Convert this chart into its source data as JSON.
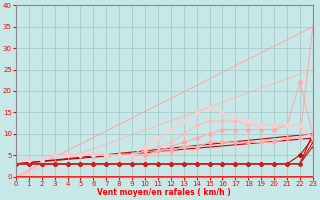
{
  "xlabel": "Vent moyen/en rafales ( km/h )",
  "bg_color": "#c8e8e8",
  "grid_color": "#a0c8c8",
  "x_min": 0,
  "x_max": 23,
  "y_min": 0,
  "y_max": 40,
  "yticks": [
    0,
    5,
    10,
    15,
    20,
    25,
    30,
    35,
    40
  ],
  "xticks": [
    0,
    1,
    2,
    3,
    4,
    5,
    6,
    7,
    8,
    9,
    10,
    11,
    12,
    13,
    14,
    15,
    16,
    17,
    18,
    19,
    20,
    21,
    22,
    23
  ],
  "lines": [
    {
      "x": [
        0,
        1,
        2,
        3,
        4,
        5,
        6,
        7,
        8,
        9,
        10,
        11,
        12,
        13,
        14,
        15,
        16,
        17,
        18,
        19,
        20,
        21,
        22,
        23
      ],
      "y": [
        3,
        3,
        3,
        3,
        3,
        3,
        3,
        3,
        3,
        3,
        3,
        3,
        3,
        3,
        3,
        3,
        3,
        3,
        3,
        3,
        3,
        3,
        3,
        10
      ],
      "color": "#cc0000",
      "lw": 0.8,
      "marker": "D",
      "ms": 2
    },
    {
      "x": [
        0,
        1,
        2,
        3,
        4,
        5,
        6,
        7,
        8,
        9,
        10,
        11,
        12,
        13,
        14,
        15,
        16,
        17,
        18,
        19,
        20,
        21,
        22,
        23
      ],
      "y": [
        3,
        3,
        3,
        3,
        3,
        3,
        3,
        3,
        3,
        3,
        3,
        3,
        3,
        3,
        3,
        3,
        3,
        3,
        3,
        3,
        3,
        3,
        5,
        9
      ],
      "color": "#cc0000",
      "lw": 0.8,
      "marker": "D",
      "ms": 2
    },
    {
      "x": [
        0,
        1,
        2,
        3,
        4,
        5,
        6,
        7,
        8,
        9,
        10,
        11,
        12,
        13,
        14,
        15,
        16,
        17,
        18,
        19,
        20,
        21,
        22,
        23
      ],
      "y": [
        3,
        3,
        3,
        3,
        3,
        3,
        3,
        3,
        3,
        3,
        3,
        3,
        3,
        3,
        3,
        3,
        3,
        3,
        3,
        3,
        3,
        3,
        3,
        8
      ],
      "color": "#cc2222",
      "lw": 0.8,
      "marker": "+",
      "ms": 3
    },
    {
      "x": [
        0,
        1,
        2,
        3,
        4,
        5,
        6,
        7,
        8,
        9,
        10,
        11,
        12,
        13,
        14,
        15,
        16,
        17,
        18,
        19,
        20,
        21,
        22,
        23
      ],
      "y": [
        3,
        3,
        3,
        3,
        3,
        3,
        3,
        3,
        3,
        3,
        3,
        3,
        3,
        3,
        3,
        3,
        3,
        3,
        3,
        3,
        3,
        3,
        3,
        7
      ],
      "color": "#cc2222",
      "lw": 0.8,
      "marker": "+",
      "ms": 3
    },
    {
      "x": [
        0,
        1,
        2,
        3,
        4,
        5,
        6,
        7,
        8,
        9,
        10,
        11,
        12,
        13,
        14,
        15,
        16,
        17,
        18,
        19,
        20,
        21,
        22,
        23
      ],
      "y": [
        4,
        4,
        4,
        5,
        5,
        5,
        5,
        5,
        5,
        5,
        5,
        6,
        6,
        7,
        7,
        8,
        8,
        8,
        8,
        8,
        8,
        9,
        9,
        35
      ],
      "color": "#ffaaaa",
      "lw": 0.8,
      "marker": "D",
      "ms": 2
    },
    {
      "x": [
        0,
        1,
        2,
        3,
        4,
        5,
        6,
        7,
        8,
        9,
        10,
        11,
        12,
        13,
        14,
        15,
        16,
        17,
        18,
        19,
        20,
        21,
        22,
        23
      ],
      "y": [
        4,
        4,
        4,
        5,
        5,
        5,
        5,
        5,
        5,
        5,
        5,
        6,
        7,
        8,
        9,
        10,
        11,
        11,
        11,
        11,
        11,
        12,
        22,
        10
      ],
      "color": "#ffaaaa",
      "lw": 0.8,
      "marker": "D",
      "ms": 2
    },
    {
      "x": [
        0,
        1,
        2,
        3,
        4,
        5,
        6,
        7,
        8,
        9,
        10,
        11,
        12,
        13,
        14,
        15,
        16,
        17,
        18,
        19,
        20,
        21,
        22,
        23
      ],
      "y": [
        4,
        4,
        4,
        5,
        5,
        5,
        5,
        5,
        5,
        5,
        6,
        7,
        8,
        10,
        12,
        13,
        13,
        13,
        12,
        12,
        12,
        12,
        12,
        9
      ],
      "color": "#ffbbbb",
      "lw": 0.8,
      "marker": "D",
      "ms": 2
    },
    {
      "x": [
        0,
        1,
        2,
        3,
        4,
        5,
        6,
        7,
        8,
        9,
        10,
        11,
        12,
        13,
        14,
        15,
        16,
        17,
        18,
        19,
        20,
        21,
        22,
        23
      ],
      "y": [
        4,
        4,
        4,
        5,
        5,
        5,
        5,
        5,
        5,
        5,
        7,
        9,
        11,
        13,
        15,
        16,
        15,
        14,
        13,
        12,
        12,
        12,
        12,
        9
      ],
      "color": "#ffcccc",
      "lw": 0.8,
      "marker": "D",
      "ms": 2
    }
  ],
  "diag_lines": [
    {
      "x": [
        0,
        23
      ],
      "y": [
        0,
        35
      ],
      "color": "#ffaaaa",
      "lw": 0.8
    },
    {
      "x": [
        0,
        23
      ],
      "y": [
        0,
        25
      ],
      "color": "#ffbbbb",
      "lw": 0.8
    },
    {
      "x": [
        0,
        23
      ],
      "y": [
        0,
        10
      ],
      "color": "#ffcccc",
      "lw": 0.8
    },
    {
      "x": [
        0,
        23
      ],
      "y": [
        3,
        10
      ],
      "color": "#cc0000",
      "lw": 0.8
    },
    {
      "x": [
        0,
        23
      ],
      "y": [
        3,
        9
      ],
      "color": "#cc0000",
      "lw": 0.8
    }
  ]
}
